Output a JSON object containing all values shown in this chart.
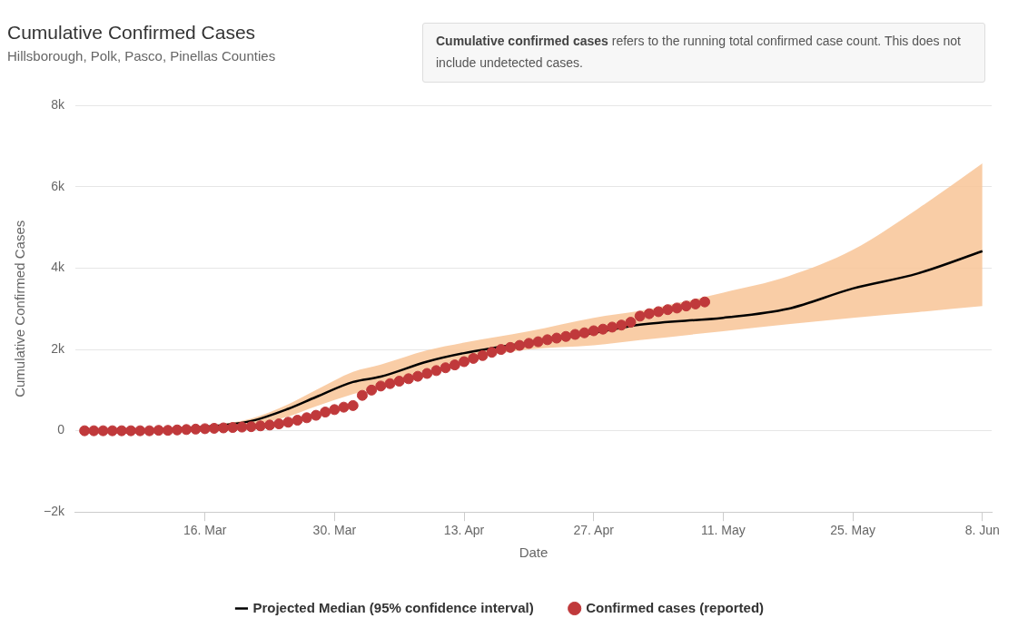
{
  "chart_data": {
    "type": "line",
    "title": "Cumulative Confirmed Cases",
    "subtitle": "Hillsborough, Polk, Pasco, Pinellas Counties",
    "annotations": [
      "Cumulative confirmed cases",
      "refers to the running total confirmed case count. This does not include undetected cases."
    ],
    "xlabel": "Date",
    "ylabel": "Cumulative Confirmed Cases",
    "xlim": [
      "--03-02",
      "--06-09"
    ],
    "xticks": [
      {
        "value": "--03-16",
        "label": "16. Mar"
      },
      {
        "value": "--03-30",
        "label": "30. Mar"
      },
      {
        "value": "--04-13",
        "label": "13. Apr"
      },
      {
        "value": "--04-27",
        "label": "27. Apr"
      },
      {
        "value": "--05-11",
        "label": "11. May"
      },
      {
        "value": "--05-25",
        "label": "25. May"
      },
      {
        "value": "--06-08",
        "label": "8. Jun"
      }
    ],
    "ylim": [
      -2000,
      8000
    ],
    "yticks": [
      {
        "value": -2000,
        "label": "−2k"
      },
      0,
      {
        "value": 2000,
        "label": "2k"
      },
      {
        "value": 4000,
        "label": "4k"
      },
      {
        "value": 6000,
        "label": "6k"
      },
      {
        "value": 8000,
        "label": "8k"
      }
    ],
    "grid": "y",
    "legend": "bottom",
    "series": [
      {
        "name": "Projected Median (95% confidence interval)",
        "color": "#000000",
        "marker": "none",
        "line_style": "solid",
        "x": [
          "--03-14",
          "--03-21",
          "--03-25",
          "--03-28",
          "--04-01",
          "--04-04",
          "--04-09",
          "--04-13",
          "--04-20",
          "--04-27",
          "--05-02",
          "--05-11",
          "--05-18",
          "--05-25",
          "--06-01",
          "--06-08"
        ],
        "values": [
          50,
          240,
          540,
          830,
          1200,
          1330,
          1700,
          1910,
          2170,
          2410,
          2610,
          2780,
          3000,
          3500,
          3870,
          4420
        ],
        "lower": [
          40,
          150,
          350,
          600,
          900,
          1100,
          1500,
          1750,
          2000,
          2100,
          2230,
          2450,
          2620,
          2780,
          2920,
          3070
        ],
        "upper": [
          60,
          300,
          650,
          1000,
          1450,
          1630,
          1980,
          2170,
          2450,
          2780,
          2950,
          3400,
          3800,
          4450,
          5460,
          6580
        ]
      },
      {
        "name": "Confirmed cases (reported)",
        "type": "scatter",
        "color": "#c0393b",
        "marker": "circle",
        "x": [
          "--03-03",
          "--03-04",
          "--03-05",
          "--03-06",
          "--03-07",
          "--03-08",
          "--03-09",
          "--03-10",
          "--03-11",
          "--03-12",
          "--03-13",
          "--03-14",
          "--03-15",
          "--03-16",
          "--03-17",
          "--03-18",
          "--03-19",
          "--03-20",
          "--03-21",
          "--03-22",
          "--03-23",
          "--03-24",
          "--03-25",
          "--03-26",
          "--03-27",
          "--03-28",
          "--03-29",
          "--03-30",
          "--03-31",
          "--04-01",
          "--04-02",
          "--04-03",
          "--04-04",
          "--04-05",
          "--04-06",
          "--04-07",
          "--04-08",
          "--04-09",
          "--04-10",
          "--04-11",
          "--04-12",
          "--04-13",
          "--04-14",
          "--04-15",
          "--04-16",
          "--04-17",
          "--04-18",
          "--04-19",
          "--04-20",
          "--04-21",
          "--04-22",
          "--04-23",
          "--04-24",
          "--04-25",
          "--04-26",
          "--04-27",
          "--04-28",
          "--04-29",
          "--04-30",
          "--05-01",
          "--05-02",
          "--05-03",
          "--05-04",
          "--05-05",
          "--05-06",
          "--05-07",
          "--05-08",
          "--05-09"
        ],
        "values": [
          0,
          0,
          0,
          0,
          0,
          0,
          0,
          0,
          10,
          10,
          20,
          30,
          40,
          50,
          60,
          70,
          80,
          90,
          100,
          120,
          140,
          170,
          210,
          260,
          320,
          380,
          460,
          520,
          580,
          620,
          870,
          1000,
          1100,
          1160,
          1220,
          1280,
          1340,
          1410,
          1480,
          1550,
          1620,
          1700,
          1780,
          1850,
          1930,
          2000,
          2050,
          2100,
          2150,
          2190,
          2240,
          2280,
          2320,
          2370,
          2410,
          2460,
          2500,
          2550,
          2600,
          2670,
          2820,
          2880,
          2930,
          2980,
          3020,
          3070,
          3120,
          3170
        ]
      }
    ]
  }
}
